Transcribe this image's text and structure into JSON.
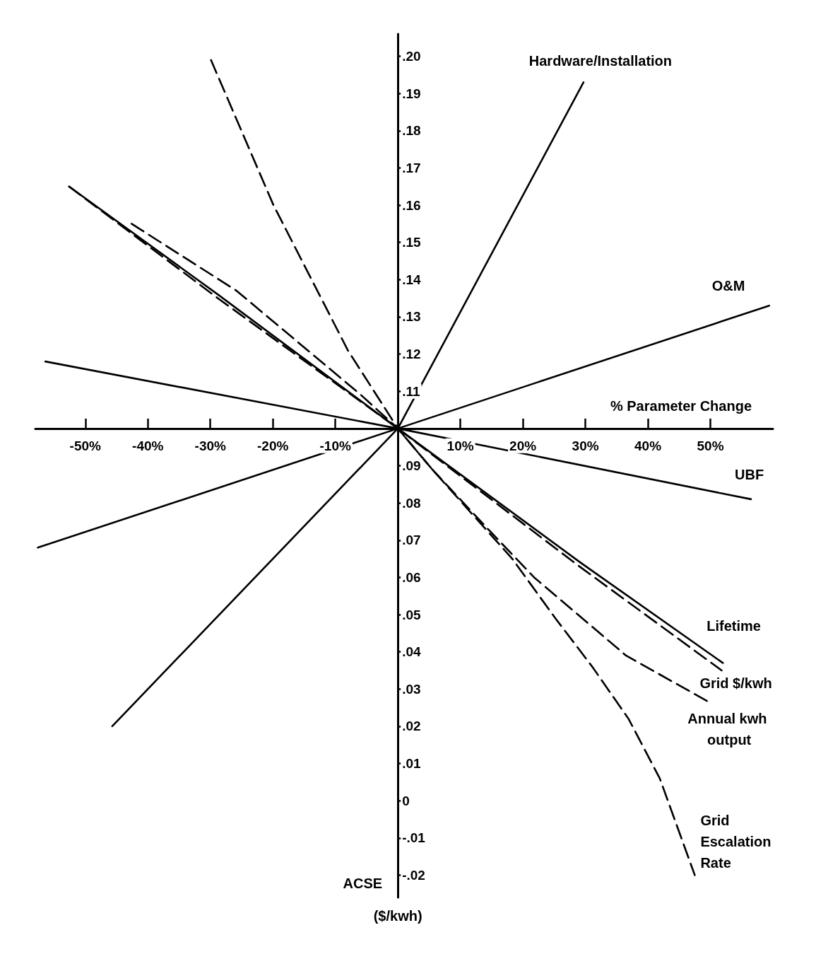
{
  "chart_data": {
    "type": "line",
    "xlabel": "% Parameter Change",
    "ylabel": "ACSE",
    "annotations": [
      "($/kwh)"
    ],
    "xlim": [
      -58,
      60
    ],
    "xticks": [
      {
        "value": -50,
        "label": "-50%"
      },
      {
        "value": -40,
        "label": "-40%"
      },
      {
        "value": -30,
        "label": "-30%"
      },
      {
        "value": -20,
        "label": "-20%"
      },
      {
        "value": -10,
        "label": "-10%"
      },
      {
        "value": 10,
        "label": "10%"
      },
      {
        "value": 20,
        "label": "20%"
      },
      {
        "value": 30,
        "label": "30%"
      },
      {
        "value": 40,
        "label": "40%"
      },
      {
        "value": 50,
        "label": "50%"
      }
    ],
    "ylim": [
      -0.026,
      0.206
    ],
    "yticks": [
      {
        "value": 0.2,
        "label": ".20"
      },
      {
        "value": 0.19,
        "label": ".19"
      },
      {
        "value": 0.18,
        "label": ".18"
      },
      {
        "value": 0.17,
        "label": ".17"
      },
      {
        "value": 0.16,
        "label": ".16"
      },
      {
        "value": 0.15,
        "label": ".15"
      },
      {
        "value": 0.14,
        "label": ".14"
      },
      {
        "value": 0.13,
        "label": ".13"
      },
      {
        "value": 0.12,
        "label": ".12"
      },
      {
        "value": 0.11,
        "label": ".11"
      },
      {
        "value": 0.09,
        "label": ".09"
      },
      {
        "value": 0.08,
        "label": ".08"
      },
      {
        "value": 0.07,
        "label": ".07"
      },
      {
        "value": 0.06,
        "label": ".06"
      },
      {
        "value": 0.05,
        "label": ".05"
      },
      {
        "value": 0.04,
        "label": ".04"
      },
      {
        "value": 0.03,
        "label": ".03"
      },
      {
        "value": 0.02,
        "label": ".02"
      },
      {
        "value": 0.01,
        "label": ".01"
      },
      0,
      {
        "value": -0.01,
        "label": "-.01"
      },
      {
        "value": -0.02,
        "label": "-.02"
      }
    ],
    "legend": false,
    "marker": "none",
    "series": [
      {
        "name": "Hardware/Installation",
        "color": "#000000",
        "line_style": "solid",
        "x": [
          -45.7,
          0,
          29.7
        ],
        "values": [
          0.02,
          0.1,
          0.193
        ]
      },
      {
        "name": "O&M",
        "color": "#000000",
        "line_style": "solid",
        "x": [
          -57.6,
          0,
          59.4
        ],
        "values": [
          0.068,
          0.1,
          0.133
        ]
      },
      {
        "name": "UBF",
        "color": "#000000",
        "line_style": "solid",
        "x": [
          -56.4,
          0,
          56.5
        ],
        "values": [
          0.118,
          0.1,
          0.081
        ]
      },
      {
        "name": "Lifetime",
        "color": "#000000",
        "line_style": "solid",
        "x": [
          -52.6,
          -28.8,
          0,
          29.2,
          52.0
        ],
        "values": [
          0.165,
          0.136,
          0.1,
          0.064,
          0.037
        ]
      },
      {
        "name": "Grid $/kwh",
        "color": "#000000",
        "line_style": "dashed",
        "x": [
          -52.6,
          -28.8,
          0,
          29.0,
          51.8
        ],
        "values": [
          0.165,
          0.135,
          0.1,
          0.063,
          0.035
        ]
      },
      {
        "name": "Annual kwh output",
        "color": "#000000",
        "line_style": "dashed",
        "x": [
          -42.6,
          -25.8,
          -5.9,
          0,
          5.5,
          14.4,
          21.8,
          36.5,
          50.3
        ],
        "values": [
          0.155,
          0.137,
          0.109,
          0.1,
          0.089,
          0.073,
          0.06,
          0.039,
          0.026
        ]
      },
      {
        "name": "Grid Escalation Rate",
        "color": "#000000",
        "line_style": "dashed",
        "x": [
          -29.9,
          -19.9,
          -8.0,
          0,
          5.5,
          18.3,
          25.2,
          31.1,
          36.9,
          41.9,
          47.5
        ],
        "values": [
          0.199,
          0.16,
          0.121,
          0.1,
          0.089,
          0.065,
          0.049,
          0.036,
          0.022,
          0.006,
          -0.02
        ]
      }
    ]
  }
}
